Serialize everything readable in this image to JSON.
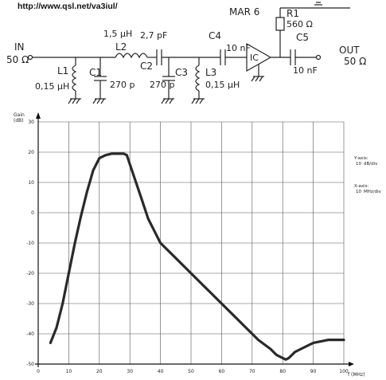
{
  "url": "http://www.qsl.net/va3iul/",
  "schematic": {
    "in_label": "IN",
    "in_impedance": "50 Ω",
    "out_label": "OUT",
    "out_impedance": "50 Ω",
    "ic_label": "MAR 6",
    "ic_symbol": "IC",
    "components": [
      {
        "ref": "L1",
        "value": "0,15 µH"
      },
      {
        "ref": "C1",
        "value": "270 p"
      },
      {
        "ref": "L2",
        "value": "1,5 µH"
      },
      {
        "ref": "C2",
        "value": "2,7 pF"
      },
      {
        "ref": "C3",
        "value": "270 p"
      },
      {
        "ref": "L3",
        "value": "0,15 µH"
      },
      {
        "ref": "C4",
        "value": "10 nF"
      },
      {
        "ref": "R1",
        "value": "560 Ω"
      },
      {
        "ref": "C5",
        "value": "10 nF"
      }
    ]
  },
  "chart_data": {
    "type": "line",
    "ylabel": "Gain",
    "yunit": "(dB)",
    "xlabel": "f (MHz)",
    "xlim": [
      0,
      100
    ],
    "ylim": [
      -50,
      30
    ],
    "x_ticks": [
      0,
      10,
      20,
      30,
      40,
      50,
      60,
      70,
      80,
      90,
      100
    ],
    "y_ticks": [
      30,
      20,
      10,
      0,
      -10,
      -20,
      -30,
      -40,
      -50
    ],
    "grid": true,
    "annotations": [
      {
        "label": "Y-axis:",
        "value": "10",
        "unit": "dB/div"
      },
      {
        "label": "X-axis:",
        "value": "10",
        "unit": "MHz/div"
      }
    ],
    "series": [
      {
        "x": [
          4,
          6,
          8,
          10,
          12,
          14,
          16,
          18,
          20,
          22,
          24,
          26,
          28,
          29,
          30,
          32,
          34,
          36,
          38,
          40,
          44,
          48,
          52,
          56,
          60,
          64,
          68,
          72,
          76,
          78,
          80,
          81,
          82,
          84,
          86,
          90,
          95,
          100
        ],
        "y": [
          -43,
          -38,
          -30,
          -20,
          -10,
          -1,
          7,
          14,
          18,
          19,
          19.5,
          19.5,
          19.5,
          19,
          16,
          10,
          4,
          -2,
          -6,
          -10,
          -14,
          -18,
          -22,
          -26,
          -30,
          -34,
          -38,
          -42,
          -45,
          -47,
          -48,
          -48.5,
          -48,
          -46,
          -45,
          -43,
          -42,
          -42
        ]
      }
    ]
  }
}
